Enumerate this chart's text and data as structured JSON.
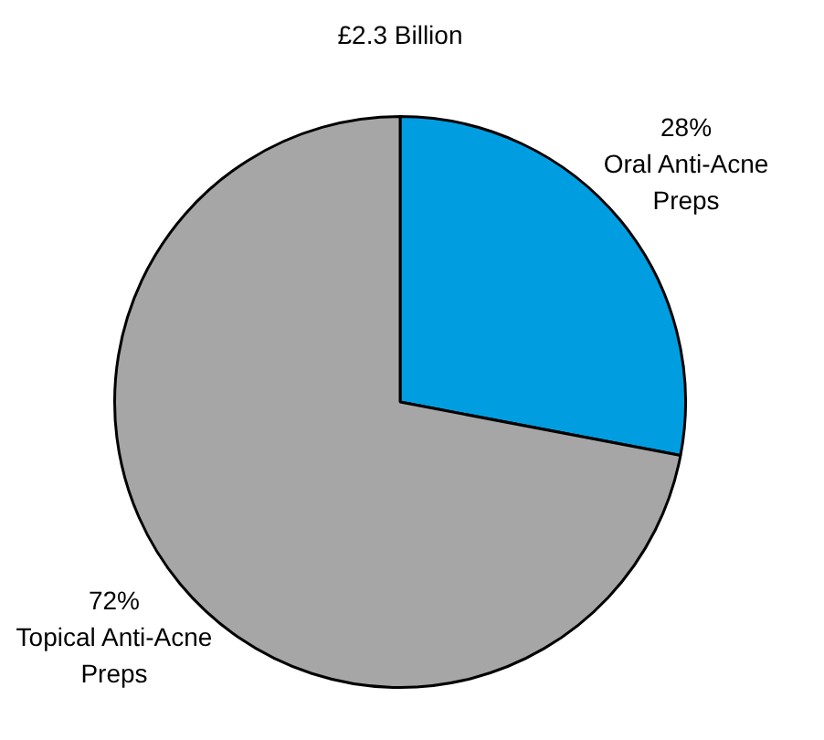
{
  "chart_data": {
    "type": "pie",
    "title": "£2.3 Billion",
    "categories": [
      "Oral Anti-Acne Preps",
      "Topical Anti-Acne Preps"
    ],
    "values": [
      28,
      72
    ],
    "colors": [
      "#009ee0",
      "#a6a6a6"
    ],
    "value_labels": [
      "28%",
      "72%"
    ],
    "legend": false
  }
}
